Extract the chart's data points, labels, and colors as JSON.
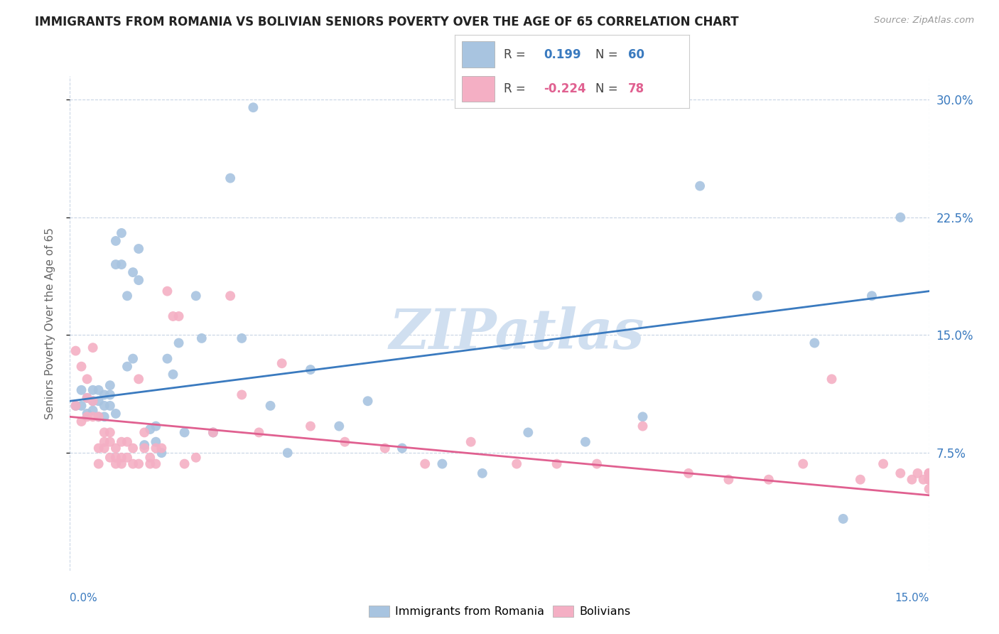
{
  "title": "IMMIGRANTS FROM ROMANIA VS BOLIVIAN SENIORS POVERTY OVER THE AGE OF 65 CORRELATION CHART",
  "source": "Source: ZipAtlas.com",
  "ylabel": "Seniors Poverty Over the Age of 65",
  "ytick_labels": [
    "7.5%",
    "15.0%",
    "22.5%",
    "30.0%"
  ],
  "ytick_values": [
    0.075,
    0.15,
    0.225,
    0.3
  ],
  "xlim": [
    0.0,
    0.15
  ],
  "ylim": [
    0.0,
    0.315
  ],
  "romania_R": 0.199,
  "romania_N": 60,
  "bolivia_R": -0.224,
  "bolivia_N": 78,
  "romania_color": "#a8c4e0",
  "bolivia_color": "#f4afc4",
  "romania_line_color": "#3a7abf",
  "bolivia_line_color": "#e06090",
  "watermark_color": "#d0dff0",
  "legend_label_romania": "Immigrants from Romania",
  "legend_label_bolivia": "Bolivians",
  "romania_line_x0": 0.0,
  "romania_line_y0": 0.108,
  "romania_line_x1": 0.15,
  "romania_line_y1": 0.178,
  "bolivia_line_x0": 0.0,
  "bolivia_line_y0": 0.098,
  "bolivia_line_x1": 0.15,
  "bolivia_line_y1": 0.048,
  "romania_x": [
    0.001,
    0.002,
    0.002,
    0.003,
    0.003,
    0.004,
    0.004,
    0.004,
    0.005,
    0.005,
    0.005,
    0.006,
    0.006,
    0.006,
    0.007,
    0.007,
    0.007,
    0.008,
    0.008,
    0.008,
    0.009,
    0.009,
    0.01,
    0.01,
    0.011,
    0.011,
    0.012,
    0.012,
    0.013,
    0.014,
    0.015,
    0.015,
    0.016,
    0.017,
    0.018,
    0.019,
    0.02,
    0.022,
    0.023,
    0.025,
    0.028,
    0.03,
    0.032,
    0.035,
    0.038,
    0.042,
    0.047,
    0.052,
    0.058,
    0.065,
    0.072,
    0.08,
    0.09,
    0.1,
    0.11,
    0.12,
    0.13,
    0.135,
    0.14,
    0.145
  ],
  "romania_y": [
    0.105,
    0.115,
    0.105,
    0.11,
    0.1,
    0.108,
    0.115,
    0.102,
    0.108,
    0.115,
    0.098,
    0.105,
    0.112,
    0.098,
    0.112,
    0.105,
    0.118,
    0.1,
    0.195,
    0.21,
    0.195,
    0.215,
    0.13,
    0.175,
    0.19,
    0.135,
    0.185,
    0.205,
    0.08,
    0.09,
    0.082,
    0.092,
    0.075,
    0.135,
    0.125,
    0.145,
    0.088,
    0.175,
    0.148,
    0.088,
    0.25,
    0.148,
    0.295,
    0.105,
    0.075,
    0.128,
    0.092,
    0.108,
    0.078,
    0.068,
    0.062,
    0.088,
    0.082,
    0.098,
    0.245,
    0.175,
    0.145,
    0.033,
    0.175,
    0.225
  ],
  "bolivia_x": [
    0.001,
    0.001,
    0.002,
    0.002,
    0.003,
    0.003,
    0.003,
    0.004,
    0.004,
    0.004,
    0.005,
    0.005,
    0.005,
    0.006,
    0.006,
    0.006,
    0.007,
    0.007,
    0.007,
    0.008,
    0.008,
    0.008,
    0.009,
    0.009,
    0.009,
    0.01,
    0.01,
    0.011,
    0.011,
    0.012,
    0.012,
    0.013,
    0.013,
    0.014,
    0.014,
    0.015,
    0.015,
    0.016,
    0.017,
    0.018,
    0.019,
    0.02,
    0.022,
    0.025,
    0.028,
    0.03,
    0.033,
    0.037,
    0.042,
    0.048,
    0.055,
    0.062,
    0.07,
    0.078,
    0.085,
    0.092,
    0.1,
    0.108,
    0.115,
    0.122,
    0.128,
    0.133,
    0.138,
    0.142,
    0.145,
    0.147,
    0.148,
    0.149,
    0.15,
    0.15,
    0.15,
    0.15,
    0.15,
    0.15,
    0.15,
    0.15,
    0.15,
    0.15
  ],
  "bolivia_y": [
    0.14,
    0.105,
    0.13,
    0.095,
    0.11,
    0.098,
    0.122,
    0.098,
    0.108,
    0.142,
    0.098,
    0.068,
    0.078,
    0.078,
    0.082,
    0.088,
    0.072,
    0.082,
    0.088,
    0.068,
    0.072,
    0.078,
    0.072,
    0.082,
    0.068,
    0.072,
    0.082,
    0.068,
    0.078,
    0.068,
    0.122,
    0.078,
    0.088,
    0.068,
    0.072,
    0.068,
    0.078,
    0.078,
    0.178,
    0.162,
    0.162,
    0.068,
    0.072,
    0.088,
    0.175,
    0.112,
    0.088,
    0.132,
    0.092,
    0.082,
    0.078,
    0.068,
    0.082,
    0.068,
    0.068,
    0.068,
    0.092,
    0.062,
    0.058,
    0.058,
    0.068,
    0.122,
    0.058,
    0.068,
    0.062,
    0.058,
    0.062,
    0.058,
    0.062,
    0.052,
    0.058,
    0.062,
    0.058,
    0.062,
    0.058,
    0.062,
    0.058,
    0.062
  ]
}
